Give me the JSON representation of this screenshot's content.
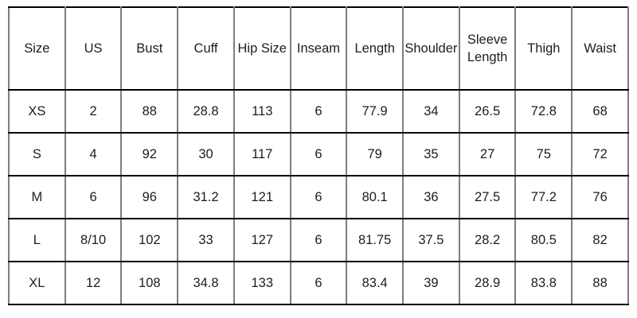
{
  "chart_data": {
    "type": "table",
    "columns": [
      "Size",
      "US",
      "Bust",
      "Cuff",
      "Hip Size",
      "Inseam",
      "Length",
      "Shoulder",
      "Sleeve Length",
      "Thigh",
      "Waist"
    ],
    "rows": [
      [
        "XS",
        "2",
        "88",
        "28.8",
        "113",
        "6",
        "77.9",
        "34",
        "26.5",
        "72.8",
        "68"
      ],
      [
        "S",
        "4",
        "92",
        "30",
        "117",
        "6",
        "79",
        "35",
        "27",
        "75",
        "72"
      ],
      [
        "M",
        "6",
        "96",
        "31.2",
        "121",
        "6",
        "80.1",
        "36",
        "27.5",
        "77.2",
        "76"
      ],
      [
        "L",
        "8/10",
        "102",
        "33",
        "127",
        "6",
        "81.75",
        "37.5",
        "28.2",
        "80.5",
        "82"
      ],
      [
        "XL",
        "12",
        "108",
        "34.8",
        "133",
        "6",
        "83.4",
        "39",
        "28.9",
        "83.8",
        "88"
      ]
    ]
  },
  "colors": {
    "grid_vertical": "#7e7e7e",
    "grid_horizontal": "#000000",
    "text": "#1d1d1d",
    "background": "#ffffff"
  }
}
